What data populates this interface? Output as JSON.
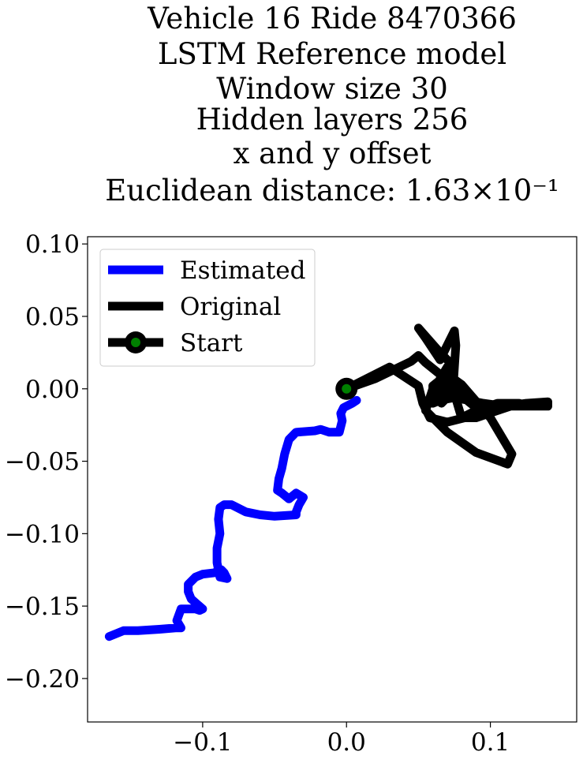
{
  "chart_data": {
    "type": "line",
    "title_lines": [
      "Vehicle 16 Ride 8470366",
      "LSTM Reference model",
      "Window size 30",
      "Hidden layers 256",
      "x and y offset",
      "Euclidean distance: 1.63×10⁻¹"
    ],
    "xlim": [
      -0.18,
      0.16
    ],
    "ylim": [
      -0.23,
      0.105
    ],
    "x_ticks": [
      -0.1,
      0.0,
      0.1
    ],
    "x_tick_labels": [
      "−0.1",
      "0.0",
      "0.1"
    ],
    "y_ticks": [
      0.1,
      0.05,
      0.0,
      -0.05,
      -0.1,
      -0.15,
      -0.2
    ],
    "y_tick_labels": [
      "0.10",
      "0.05",
      "0.00",
      "−0.05",
      "−0.10",
      "−0.15",
      "−0.20"
    ],
    "grid": false,
    "legend_position": "top-left",
    "legend": [
      {
        "label": "Estimated",
        "kind": "line",
        "color": "#0000ff"
      },
      {
        "label": "Original",
        "kind": "line",
        "color": "#000000"
      },
      {
        "label": "Start",
        "kind": "marker",
        "color": "#000000",
        "marker_color": "#008000"
      }
    ],
    "series": [
      {
        "name": "Estimated",
        "color": "#0000ff",
        "x": [
          0.007,
          0.004,
          -0.002,
          -0.004,
          -0.003,
          -0.005,
          -0.012,
          -0.018,
          -0.022,
          -0.035,
          -0.04,
          -0.043,
          -0.045,
          -0.047,
          -0.048,
          -0.045,
          -0.04,
          -0.035,
          -0.03,
          -0.033,
          -0.035,
          -0.035,
          -0.05,
          -0.06,
          -0.07,
          -0.08,
          -0.085,
          -0.088,
          -0.089,
          -0.088,
          -0.09,
          -0.09,
          -0.088,
          -0.083,
          -0.085,
          -0.087,
          -0.092,
          -0.1,
          -0.105,
          -0.11,
          -0.11,
          -0.108,
          -0.1,
          -0.102,
          -0.105,
          -0.115,
          -0.118,
          -0.115,
          -0.118,
          -0.13,
          -0.145,
          -0.155,
          -0.165
        ],
        "y": [
          -0.008,
          -0.01,
          -0.013,
          -0.017,
          -0.022,
          -0.03,
          -0.03,
          -0.028,
          -0.029,
          -0.03,
          -0.035,
          -0.045,
          -0.055,
          -0.062,
          -0.07,
          -0.072,
          -0.076,
          -0.072,
          -0.075,
          -0.08,
          -0.085,
          -0.087,
          -0.088,
          -0.087,
          -0.085,
          -0.08,
          -0.08,
          -0.082,
          -0.09,
          -0.1,
          -0.11,
          -0.12,
          -0.13,
          -0.131,
          -0.127,
          -0.125,
          -0.127,
          -0.128,
          -0.13,
          -0.135,
          -0.14,
          -0.145,
          -0.152,
          -0.153,
          -0.152,
          -0.152,
          -0.16,
          -0.165,
          -0.165,
          -0.166,
          -0.167,
          -0.167,
          -0.171
        ]
      },
      {
        "name": "Original",
        "color": "#000000",
        "x": [
          0.0,
          0.02,
          0.045,
          0.05,
          0.055,
          0.065,
          0.07,
          0.068,
          0.066,
          0.064,
          0.07,
          0.073,
          0.076,
          0.08,
          0.09,
          0.1,
          0.11,
          0.125,
          0.14,
          0.14,
          0.125,
          0.11,
          0.095,
          0.075,
          0.065,
          0.06,
          0.06,
          0.07,
          0.08,
          0.1,
          0.115,
          0.112,
          0.09,
          0.07,
          0.055,
          0.06,
          0.075,
          0.065,
          0.05,
          0.055,
          0.065,
          0.075,
          0.076,
          0.075,
          0.074,
          0.077,
          0.08,
          0.09,
          0.105,
          0.12,
          0.105,
          0.09,
          0.082,
          0.07,
          0.058,
          0.053,
          0.05,
          0.03,
          0.0
        ],
        "y": [
          0.0,
          0.007,
          0.019,
          0.023,
          0.018,
          0.01,
          0.0,
          -0.008,
          -0.01,
          0.005,
          0.015,
          0.005,
          0.0,
          -0.005,
          -0.013,
          -0.015,
          -0.012,
          -0.01,
          -0.009,
          -0.012,
          -0.012,
          -0.012,
          -0.01,
          -0.006,
          -0.008,
          -0.01,
          0.002,
          0.01,
          0.003,
          -0.02,
          -0.045,
          -0.052,
          -0.044,
          -0.03,
          -0.015,
          0.0,
          0.015,
          0.025,
          0.042,
          0.035,
          0.02,
          0.04,
          0.03,
          0.015,
          0.0,
          -0.01,
          -0.02,
          -0.015,
          -0.01,
          -0.01,
          -0.015,
          -0.02,
          -0.02,
          -0.023,
          -0.02,
          -0.01,
          0.002,
          0.015,
          0.0
        ]
      }
    ],
    "start_point": {
      "x": 0.0,
      "y": 0.0
    }
  }
}
